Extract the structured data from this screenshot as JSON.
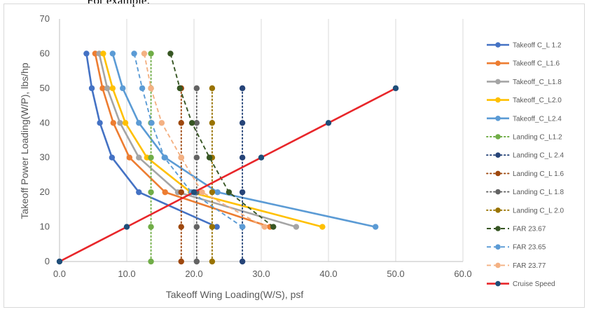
{
  "page": {
    "top_note": "For example:"
  },
  "chart_data": {
    "type": "line",
    "title": "",
    "xlabel": "Takeoff Wing Loading(W/S), psf",
    "ylabel": "Takeoff Power Loading(W/P), lbs/hp",
    "xlim": [
      0,
      60
    ],
    "ylim": [
      0,
      70
    ],
    "x_ticks": [
      "0.0",
      "10.0",
      "20.0",
      "30.0",
      "40.0",
      "50.0",
      "60.0"
    ],
    "y_ticks": [
      "0",
      "10",
      "20",
      "30",
      "40",
      "50",
      "60",
      "70"
    ],
    "grid": "vertical",
    "legend_position": "right",
    "series": [
      {
        "name": "Takeoff C_L 1.2",
        "color": "#4472C4",
        "dash": "solid",
        "x": [
          4.0,
          4.8,
          6.0,
          7.8,
          11.8,
          23.4
        ],
        "y": [
          60,
          50,
          40,
          30,
          20,
          10
        ]
      },
      {
        "name": "Takeoff C_L1.6",
        "color": "#ED7D31",
        "dash": "solid",
        "x": [
          5.3,
          6.4,
          8.0,
          10.4,
          15.7,
          31.3
        ],
        "y": [
          60,
          50,
          40,
          30,
          20,
          10
        ]
      },
      {
        "name": "Takeoff_C_L1.8",
        "color": "#A5A5A5",
        "dash": "solid",
        "x": [
          5.9,
          7.1,
          9.0,
          11.8,
          17.6,
          35.2
        ],
        "y": [
          60,
          50,
          40,
          30,
          20,
          10
        ]
      },
      {
        "name": "Takeoff_C_L2.0",
        "color": "#FFC000",
        "dash": "solid",
        "x": [
          6.5,
          7.9,
          9.8,
          13.0,
          19.5,
          39.1
        ],
        "y": [
          60,
          50,
          40,
          30,
          20,
          10
        ]
      },
      {
        "name": "Takeoff_C_L2.4",
        "color": "#5B9BD5",
        "dash": "solid",
        "x": [
          7.9,
          9.4,
          11.8,
          15.7,
          23.5,
          47.0
        ],
        "y": [
          60,
          50,
          40,
          30,
          20,
          10
        ]
      },
      {
        "name": "Landing C_L1.2",
        "color": "#70AD47",
        "dash": "dot",
        "x": [
          13.6,
          13.6,
          13.6,
          13.6,
          13.6,
          13.6,
          13.6
        ],
        "y": [
          0,
          10,
          20,
          30,
          40,
          50,
          60
        ]
      },
      {
        "name": "Landing C_L 2.4",
        "color": "#264478",
        "dash": "dot",
        "x": [
          27.2,
          27.2,
          27.2,
          27.2,
          27.2,
          27.2
        ],
        "y": [
          0,
          10,
          20,
          30,
          40,
          50
        ]
      },
      {
        "name": "Landing C_L 1.6",
        "color": "#9E480E",
        "dash": "dot",
        "x": [
          18.1,
          18.1,
          18.1,
          18.1,
          18.1,
          18.1
        ],
        "y": [
          0,
          10,
          20,
          30,
          40,
          50
        ]
      },
      {
        "name": "Landing C_L 1.8",
        "color": "#636363",
        "dash": "dot",
        "x": [
          20.4,
          20.4,
          20.4,
          20.4,
          20.4,
          20.4
        ],
        "y": [
          0,
          10,
          20,
          30,
          40,
          50
        ]
      },
      {
        "name": "Landing C_L 2.0",
        "color": "#997300",
        "dash": "dot",
        "x": [
          22.7,
          22.7,
          22.7,
          22.7,
          22.7,
          22.7
        ],
        "y": [
          0,
          10,
          20,
          30,
          40,
          50
        ]
      },
      {
        "name": "FAR 23.67",
        "color": "#375623",
        "dash": "dash",
        "x": [
          16.5,
          17.9,
          19.7,
          22.3,
          25.2,
          31.8
        ],
        "y": [
          60,
          50,
          40,
          30,
          20,
          10
        ]
      },
      {
        "name": "FAR 23.65",
        "color": "#5B9BD5",
        "dash": "dash",
        "x": [
          11.1,
          12.3,
          13.7,
          15.6,
          19.6,
          27.2
        ],
        "y": [
          60,
          50,
          40,
          30,
          20,
          10
        ]
      },
      {
        "name": "FAR 23.77",
        "color": "#F4B183",
        "dash": "dash",
        "x": [
          12.6,
          13.6,
          15.2,
          18.1,
          21.2,
          30.5
        ],
        "y": [
          60,
          50,
          40,
          30,
          20,
          10
        ]
      },
      {
        "name": "Cruise Speed",
        "color": "#E8262A",
        "dash": "solid",
        "marker_color": "#1F4E79",
        "x": [
          0,
          10,
          20,
          30,
          40,
          50
        ],
        "y": [
          0,
          10,
          20,
          30,
          40,
          50
        ]
      }
    ]
  }
}
